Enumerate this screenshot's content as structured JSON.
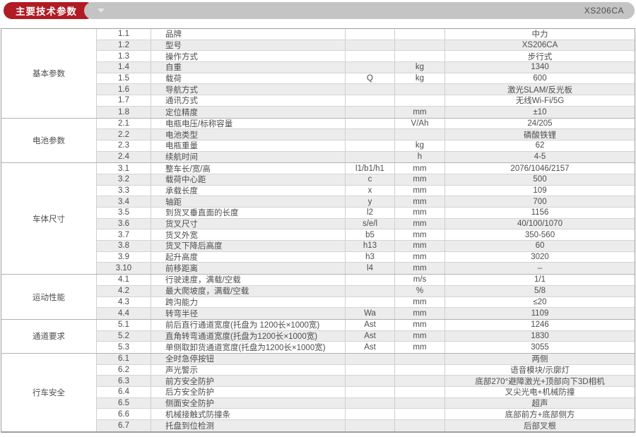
{
  "header": {
    "title": "主要技术参数",
    "model": "XS206CA",
    "accent_red": "#b01b24",
    "bar_gray": "#c4c4c4",
    "dropdown_icon": "triangle-down-icon"
  },
  "table": {
    "sections": [
      {
        "category": "基本参数",
        "rows": [
          {
            "no": "1.1",
            "name": "品牌",
            "symbol": "",
            "unit": "",
            "value": "中力"
          },
          {
            "no": "1.2",
            "name": "型号",
            "symbol": "",
            "unit": "",
            "value": "XS206CA"
          },
          {
            "no": "1.3",
            "name": "操作方式",
            "symbol": "",
            "unit": "",
            "value": "步行式"
          },
          {
            "no": "1.4",
            "name": "自重",
            "symbol": "",
            "unit": "kg",
            "value": "1340"
          },
          {
            "no": "1.5",
            "name": "载荷",
            "symbol": "Q",
            "unit": "kg",
            "value": "600"
          },
          {
            "no": "1.6",
            "name": "导航方式",
            "symbol": "",
            "unit": "",
            "value": "激光SLAM/反光板"
          },
          {
            "no": "1.7",
            "name": "通讯方式",
            "symbol": "",
            "unit": "",
            "value": "无线Wi-Fi/5G"
          },
          {
            "no": "1.8",
            "name": "定位精度",
            "symbol": "",
            "unit": "mm",
            "value": "±10"
          }
        ]
      },
      {
        "category": "电池参数",
        "rows": [
          {
            "no": "2.1",
            "name": "电瓶电压/标称容量",
            "symbol": "",
            "unit": "V/Ah",
            "value": "24/205"
          },
          {
            "no": "2.2",
            "name": "电池类型",
            "symbol": "",
            "unit": "",
            "value": "磷酸铁锂"
          },
          {
            "no": "2.3",
            "name": "电瓶重量",
            "symbol": "",
            "unit": "kg",
            "value": "62"
          },
          {
            "no": "2.4",
            "name": "续航时间",
            "symbol": "",
            "unit": "h",
            "value": "4-5"
          }
        ]
      },
      {
        "category": "车体尺寸",
        "rows": [
          {
            "no": "3.1",
            "name": "整车长/宽/高",
            "symbol": "l1/b1/h1",
            "unit": "mm",
            "value": "2076/1046/2157"
          },
          {
            "no": "3.2",
            "name": "载荷中心距",
            "symbol": "c",
            "unit": "mm",
            "value": "500"
          },
          {
            "no": "3.3",
            "name": "承载长度",
            "symbol": "x",
            "unit": "mm",
            "value": "109"
          },
          {
            "no": "3.4",
            "name": "轴距",
            "symbol": "y",
            "unit": "mm",
            "value": "700"
          },
          {
            "no": "3.5",
            "name": "到货叉垂直面的长度",
            "symbol": "l2",
            "unit": "mm",
            "value": "1156"
          },
          {
            "no": "3.6",
            "name": "货叉尺寸",
            "symbol": "s/e/l",
            "unit": "mm",
            "value": "40/100/1070"
          },
          {
            "no": "3.7",
            "name": "货叉外宽",
            "symbol": "b5",
            "unit": "mm",
            "value": "350-560"
          },
          {
            "no": "3.8",
            "name": "货叉下降后高度",
            "symbol": "h13",
            "unit": "mm",
            "value": "60"
          },
          {
            "no": "3.9",
            "name": "起升高度",
            "symbol": "h3",
            "unit": "mm",
            "value": "3020"
          },
          {
            "no": "3.10",
            "name": "前移距离",
            "symbol": "l4",
            "unit": "mm",
            "value": "–"
          }
        ]
      },
      {
        "category": "运动性能",
        "rows": [
          {
            "no": "4.1",
            "name": "行驶速度，满载/空载",
            "symbol": "",
            "unit": "m/s",
            "value": "1/1"
          },
          {
            "no": "4.2",
            "name": "最大爬坡度，满载/空载",
            "symbol": "",
            "unit": "%",
            "value": "5/8"
          },
          {
            "no": "4.3",
            "name": "跨沟能力",
            "symbol": "",
            "unit": "mm",
            "value": "≤20"
          },
          {
            "no": "4.4",
            "name": "转弯半径",
            "symbol": "Wa",
            "unit": "mm",
            "value": "1109"
          }
        ]
      },
      {
        "category": "通道要求",
        "rows": [
          {
            "no": "5.1",
            "name": "前后直行通道宽度(托盘为 1200长×1000宽)",
            "symbol": "Ast",
            "unit": "mm",
            "value": "1246"
          },
          {
            "no": "5.2",
            "name": "直角转弯通道宽度(托盘为1200长×1000宽)",
            "symbol": "Ast",
            "unit": "mm",
            "value": "1830"
          },
          {
            "no": "5.3",
            "name": "单侧取卸货通道宽度(托盘为1200长×1000宽)",
            "symbol": "Ast",
            "unit": "mm",
            "value": "3055"
          }
        ]
      },
      {
        "category": "行车安全",
        "rows": [
          {
            "no": "6.1",
            "name": "全时急停按钮",
            "symbol": "",
            "unit": "",
            "value": "两侧"
          },
          {
            "no": "6.2",
            "name": "声光警示",
            "symbol": "",
            "unit": "",
            "value": "语音模块/示廓灯"
          },
          {
            "no": "6.3",
            "name": "前方安全防护",
            "symbol": "",
            "unit": "",
            "value": "底部270°避障激光+顶部向下3D相机"
          },
          {
            "no": "6.4",
            "name": "后方安全防护",
            "symbol": "",
            "unit": "",
            "value": "叉尖光电+机械防撞"
          },
          {
            "no": "6.5",
            "name": "侧面安全防护",
            "symbol": "",
            "unit": "",
            "value": "超声"
          },
          {
            "no": "6.6",
            "name": "机械接触式防撞条",
            "symbol": "",
            "unit": "",
            "value": "底部前方+底部侧方"
          },
          {
            "no": "6.7",
            "name": "托盘到位检测",
            "symbol": "",
            "unit": "",
            "value": "后部叉根"
          }
        ]
      }
    ]
  }
}
